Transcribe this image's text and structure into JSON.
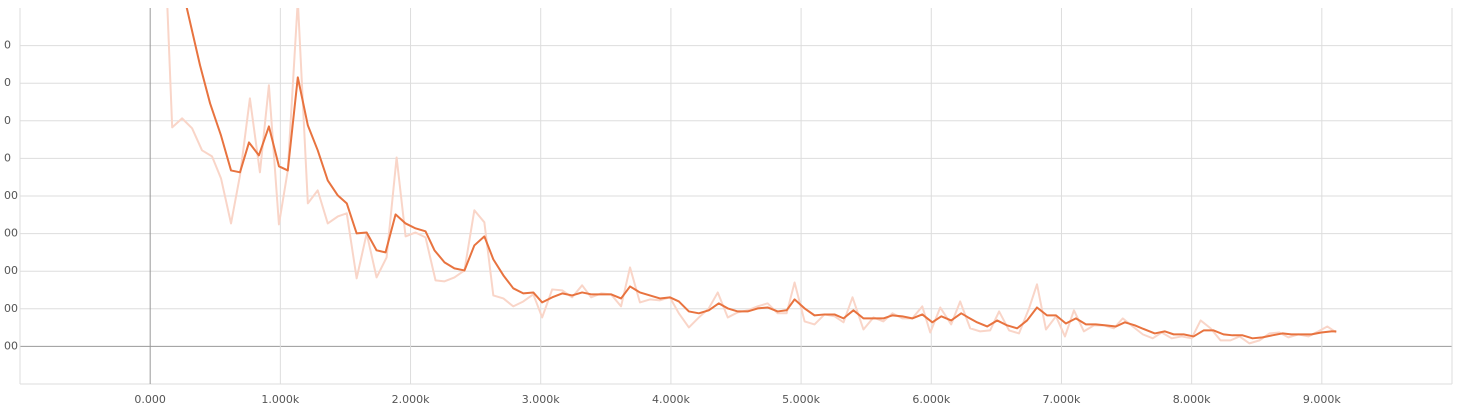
{
  "chart_data": {
    "type": "line",
    "xlim": [
      -1000,
      10000
    ],
    "xticks": [
      {
        "value": -1000,
        "label": ""
      },
      {
        "value": 0,
        "label": "0.000"
      },
      {
        "value": 1000,
        "label": "1.000k"
      },
      {
        "value": 2000,
        "label": "2.000k"
      },
      {
        "value": 3000,
        "label": "3.000k"
      },
      {
        "value": 4000,
        "label": "4.000k"
      },
      {
        "value": 5000,
        "label": "5.000k"
      },
      {
        "value": 6000,
        "label": "6.000k"
      },
      {
        "value": 7000,
        "label": "7.000k"
      },
      {
        "value": 8000,
        "label": "8.000k"
      },
      {
        "value": 9000,
        "label": "9.000k"
      },
      {
        "value": 10000,
        "label": ""
      }
    ],
    "ylim": [
      -200,
      1800
    ],
    "yticks": [
      {
        "value": -200,
        "label": ""
      },
      {
        "value": 0,
        "label": "00"
      },
      {
        "value": 200,
        "label": "00"
      },
      {
        "value": 400,
        "label": "00"
      },
      {
        "value": 600,
        "label": "00"
      },
      {
        "value": 800,
        "label": "00"
      },
      {
        "value": 1000,
        "label": "0"
      },
      {
        "value": 1200,
        "label": "0"
      },
      {
        "value": 1400,
        "label": "0"
      },
      {
        "value": 1600,
        "label": "0"
      }
    ],
    "grid": true,
    "series": [
      {
        "color": "#f9d5c8",
        "x": [
          130,
          169,
          245,
          322,
          398,
          475,
          544,
          621,
          690,
          766,
          843,
          912,
          989,
          1057,
          1134,
          1211,
          1287,
          1364,
          1441,
          1510,
          1586,
          1663,
          1739,
          1816,
          1893,
          1962,
          2038,
          2115,
          2192,
          2261,
          2337,
          2414,
          2490,
          2567,
          2636,
          2713,
          2789,
          2866,
          2943,
          3011,
          3088,
          3165,
          3241,
          3318,
          3387,
          3464,
          3540,
          3617,
          3686,
          3762,
          3839,
          3916,
          3992,
          4061,
          4138,
          4215,
          4291,
          4360,
          4437,
          4513,
          4590,
          4667,
          4743,
          4820,
          4889,
          4950,
          5027,
          5103,
          5180,
          5257,
          5326,
          5395,
          5479,
          5556,
          5632,
          5701,
          5778,
          5854,
          5931,
          5992,
          6069,
          6153,
          6222,
          6299,
          6375,
          6452,
          6521,
          6598,
          6674,
          6751,
          6812,
          6881,
          6958,
          7027,
          7096,
          7172,
          7249,
          7326,
          7402,
          7471,
          7548,
          7625,
          7701,
          7770,
          7847,
          7923,
          8000,
          8069,
          8146,
          8222,
          8299,
          8368,
          8444,
          8521,
          8598,
          8674,
          8743,
          8820,
          8897,
          8973,
          9042,
          9111
        ],
        "values": [
          1840,
          1165,
          1213,
          1160,
          1043,
          1011,
          894,
          654,
          910,
          1319,
          926,
          1389,
          649,
          936,
          1840,
          761,
          830,
          654,
          691,
          708,
          362,
          601,
          367,
          473,
          1005,
          585,
          606,
          580,
          351,
          346,
          367,
          404,
          724,
          660,
          271,
          255,
          213,
          239,
          277,
          154,
          303,
          298,
          261,
          325,
          261,
          282,
          277,
          213,
          420,
          234,
          250,
          245,
          261,
          176,
          101,
          154,
          202,
          287,
          154,
          181,
          192,
          213,
          229,
          176,
          176,
          340,
          133,
          117,
          170,
          160,
          128,
          261,
          90,
          154,
          133,
          176,
          149,
          149,
          213,
          74,
          207,
          117,
          239,
          96,
          80,
          85,
          186,
          85,
          69,
          202,
          330,
          90,
          160,
          53,
          192,
          80,
          112,
          112,
          96,
          149,
          106,
          64,
          43,
          74,
          43,
          53,
          43,
          138,
          96,
          32,
          32,
          53,
          16,
          32,
          69,
          74,
          48,
          64,
          53,
          80,
          106,
          74
        ]
      },
      {
        "color": "#e8733f",
        "x": [
          268,
          383,
          460,
          544,
          621,
          690,
          759,
          835,
          912,
          989,
          1057,
          1134,
          1211,
          1287,
          1364,
          1441,
          1510,
          1586,
          1663,
          1739,
          1808,
          1885,
          1962,
          2038,
          2115,
          2184,
          2261,
          2337,
          2414,
          2490,
          2567,
          2636,
          2713,
          2789,
          2866,
          2943,
          3011,
          3088,
          3165,
          3241,
          3318,
          3387,
          3464,
          3540,
          3617,
          3686,
          3762,
          3839,
          3916,
          3992,
          4061,
          4138,
          4215,
          4291,
          4368,
          4437,
          4513,
          4590,
          4667,
          4743,
          4820,
          4889,
          4950,
          5027,
          5103,
          5180,
          5257,
          5326,
          5402,
          5479,
          5556,
          5632,
          5701,
          5778,
          5854,
          5931,
          6008,
          6077,
          6153,
          6230,
          6284,
          6352,
          6429,
          6506,
          6582,
          6659,
          6736,
          6812,
          6889,
          6958,
          7034,
          7111,
          7188,
          7264,
          7341,
          7418,
          7487,
          7563,
          7640,
          7717,
          7793,
          7862,
          7939,
          8015,
          8092,
          8169,
          8245,
          8314,
          8391,
          8467,
          8544,
          8621,
          8697,
          8766,
          8843,
          8920,
          8996,
          9073,
          9111
        ],
        "values": [
          1840,
          1495,
          1293,
          1122,
          936,
          926,
          1085,
          1016,
          1170,
          958,
          936,
          1431,
          1176,
          1043,
          883,
          803,
          761,
          601,
          606,
          511,
          500,
          702,
          654,
          628,
          612,
          511,
          447,
          415,
          404,
          537,
          585,
          463,
          378,
          309,
          282,
          287,
          234,
          261,
          282,
          271,
          287,
          277,
          277,
          277,
          255,
          319,
          287,
          271,
          255,
          261,
          239,
          186,
          176,
          192,
          229,
          202,
          186,
          186,
          202,
          207,
          186,
          192,
          250,
          202,
          165,
          170,
          170,
          149,
          192,
          149,
          149,
          149,
          165,
          160,
          149,
          170,
          128,
          160,
          138,
          176,
          154,
          128,
          106,
          138,
          112,
          96,
          138,
          207,
          165,
          165,
          122,
          149,
          117,
          117,
          112,
          106,
          128,
          112,
          90,
          69,
          80,
          64,
          64,
          53,
          85,
          85,
          64,
          59,
          59,
          43,
          48,
          59,
          69,
          64,
          64,
          64,
          74,
          80,
          80
        ]
      }
    ]
  }
}
